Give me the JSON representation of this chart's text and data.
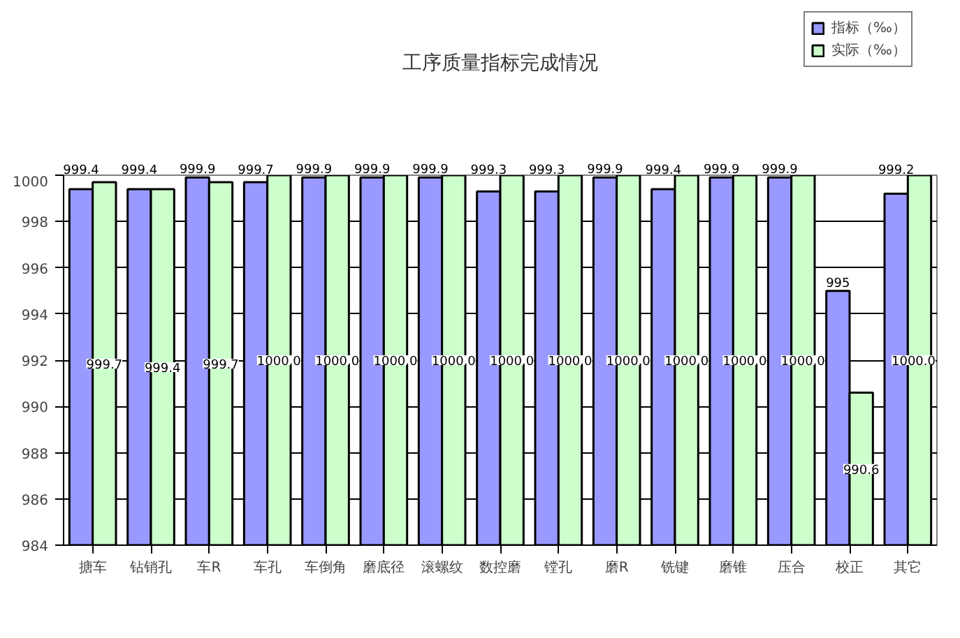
{
  "chart_data": {
    "type": "bar",
    "title": "工序质量指标完成情况",
    "categories": [
      "搪车",
      "钻销孔",
      "车R",
      "车孔",
      "车倒角",
      "磨底径",
      "滚螺纹",
      "数控磨",
      "镗孔",
      "磨R",
      "铣键",
      "磨锥",
      "压合",
      "校正",
      "其它"
    ],
    "series": [
      {
        "name": "指标（‰）",
        "color": "#9999ff",
        "values": [
          999.4,
          999.4,
          999.9,
          999.7,
          999.9,
          999.9,
          999.9,
          999.3,
          999.3,
          999.9,
          999.4,
          999.9,
          999.9,
          995,
          999.2
        ],
        "value_labels": [
          "999.4",
          "999.4",
          "999.9",
          "999.7",
          "999.9",
          "999.9",
          "999.9",
          "999.3",
          "999.3",
          "999.9",
          "999.4",
          "999.9",
          "999.9",
          "995",
          "999.2"
        ]
      },
      {
        "name": "实际（‰）",
        "color": "#ccffcc",
        "values": [
          999.7,
          999.4,
          999.7,
          1000.0,
          1000.0,
          1000.0,
          1000.0,
          1000.0,
          1000.0,
          1000.0,
          1000.0,
          1000.0,
          1000.0,
          990.6,
          1000.0
        ],
        "value_labels": [
          "999.7",
          "999.4",
          "999.7",
          "1000.0",
          "1000.0",
          "1000.0",
          "1000.0",
          "1000.0",
          "1000.0",
          "1000.0",
          "1000.0",
          "1000.0",
          "1000.0",
          "990.6",
          "1000.0"
        ]
      }
    ],
    "ylim": [
      984,
      1000
    ],
    "yticks": [
      984,
      986,
      988,
      990,
      992,
      994,
      996,
      998,
      1000
    ],
    "grid": "y",
    "legend": "top right"
  }
}
